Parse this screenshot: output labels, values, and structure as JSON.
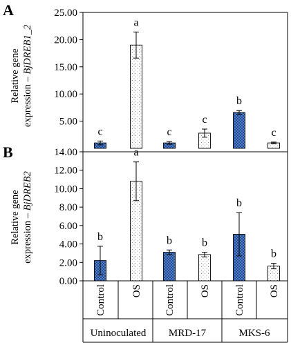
{
  "chart_data": [
    {
      "type": "bar",
      "panel_label": "A",
      "ylabel_prefix": "Relative gene",
      "ylabel_main": "expression – ",
      "ylabel_gene": "BjDREB1_2",
      "ylim": [
        0,
        25
      ],
      "y_ticks": [
        "5.00",
        "10.00",
        "15.00",
        "20.00",
        "25.00"
      ],
      "y_tick_values": [
        5,
        10,
        15,
        20,
        25
      ],
      "categories": [
        "Control",
        "OS",
        "Control",
        "OS",
        "Control",
        "OS"
      ],
      "values": [
        1.0,
        19.0,
        1.0,
        2.8,
        6.6,
        1.0
      ],
      "errors": [
        0.35,
        2.4,
        0.25,
        0.75,
        0.35,
        0.15
      ],
      "significance": [
        "c",
        "a",
        "c",
        "c",
        "b",
        "c"
      ]
    },
    {
      "type": "bar",
      "panel_label": "B",
      "ylabel_prefix": "Relative gene",
      "ylabel_main": "expression – ",
      "ylabel_gene": "BjDREB2",
      "ylim": [
        0,
        14
      ],
      "y_ticks": [
        "0.00",
        "2.00",
        "4.00",
        "6.00",
        "8.00",
        "10.00",
        "12.00",
        "14.00"
      ],
      "y_tick_values": [
        0,
        2,
        4,
        6,
        8,
        10,
        12,
        14
      ],
      "categories": [
        "Control",
        "OS",
        "Control",
        "OS",
        "Control",
        "OS"
      ],
      "values": [
        2.2,
        10.8,
        3.1,
        2.85,
        5.05,
        1.6
      ],
      "errors": [
        1.55,
        2.1,
        0.25,
        0.25,
        2.35,
        0.3
      ],
      "significance": [
        "b",
        "a",
        "b",
        "b",
        "b",
        "b"
      ]
    }
  ],
  "x_axis": {
    "treatments": [
      "Control",
      "OS",
      "Control",
      "OS",
      "Control",
      "OS"
    ],
    "groups": [
      "Uninoculated",
      "MRD-17",
      "MKS-6"
    ]
  },
  "bar_styles": {
    "Control": {
      "fill": "#5b8fd6",
      "pattern": "crosshatch"
    },
    "OS": {
      "fill": "#ffffff",
      "pattern": "dots"
    }
  }
}
